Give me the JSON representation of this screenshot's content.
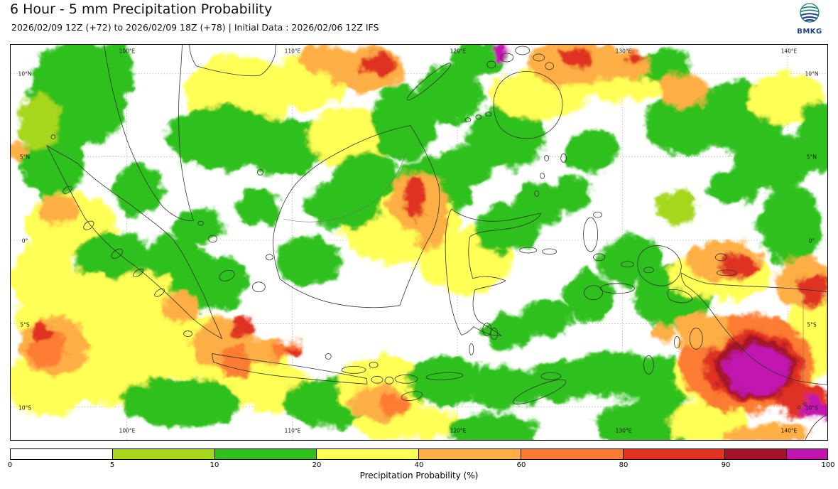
{
  "header": {
    "title": "6 Hour - 5 mm Precipitation Probability",
    "subtitle": "2026/02/09 12Z (+72) to 2026/02/09 18Z (+78) | Initial Data : 2026/02/06 12Z IFS"
  },
  "logo": {
    "label": "BMKG",
    "navy": "#1b3f8f",
    "teal": "#0e7f72"
  },
  "map": {
    "lon_labels": [
      "100°E",
      "110°E",
      "120°E",
      "130°E",
      "140°E"
    ],
    "lat_labels": [
      "10°N",
      "5°N",
      "0°",
      "5°S",
      "10°S"
    ],
    "palette": {
      "l": "#a6d71c",
      "g": "#2fc01e",
      "y": "#ffff55",
      "o": "#fdae44",
      "O": "#fb7b32",
      "r": "#e03122",
      "R": "#a41428",
      "m": "#c215b0"
    },
    "blobs": [
      [
        95,
        70,
        70,
        75,
        "g"
      ],
      [
        152,
        35,
        22,
        45,
        "g"
      ],
      [
        60,
        165,
        45,
        55,
        "g"
      ],
      [
        40,
        110,
        30,
        40,
        "l"
      ],
      [
        320,
        70,
        75,
        55,
        "y"
      ],
      [
        300,
        130,
        80,
        45,
        "g"
      ],
      [
        420,
        50,
        55,
        40,
        "y"
      ],
      [
        385,
        145,
        65,
        40,
        "g"
      ],
      [
        480,
        130,
        60,
        45,
        "y"
      ],
      [
        555,
        110,
        45,
        55,
        "g"
      ],
      [
        620,
        70,
        45,
        40,
        "g"
      ],
      [
        660,
        20,
        40,
        25,
        "g"
      ],
      [
        700,
        130,
        55,
        45,
        "g"
      ],
      [
        745,
        70,
        70,
        35,
        "y"
      ],
      [
        855,
        45,
        75,
        35,
        "y"
      ],
      [
        920,
        30,
        40,
        25,
        "g"
      ],
      [
        950,
        110,
        55,
        45,
        "g"
      ],
      [
        1030,
        100,
        65,
        50,
        "g"
      ],
      [
        1095,
        75,
        55,
        35,
        "y"
      ],
      [
        1075,
        165,
        55,
        40,
        "g"
      ],
      [
        1140,
        130,
        30,
        50,
        "g"
      ],
      [
        595,
        205,
        55,
        45,
        "g"
      ],
      [
        550,
        255,
        85,
        55,
        "y"
      ],
      [
        470,
        225,
        55,
        35,
        "g"
      ],
      [
        640,
        305,
        65,
        45,
        "y"
      ],
      [
        700,
        260,
        45,
        35,
        "g"
      ],
      [
        745,
        225,
        35,
        30,
        "g"
      ],
      [
        85,
        255,
        65,
        45,
        "y"
      ],
      [
        45,
        330,
        45,
        55,
        "y"
      ],
      [
        145,
        305,
        55,
        40,
        "g"
      ],
      [
        95,
        385,
        85,
        65,
        "y"
      ],
      [
        200,
        365,
        65,
        45,
        "y"
      ],
      [
        280,
        335,
        55,
        40,
        "g"
      ],
      [
        230,
        300,
        40,
        30,
        "g"
      ],
      [
        55,
        475,
        60,
        50,
        "y"
      ],
      [
        155,
        455,
        75,
        55,
        "y"
      ],
      [
        255,
        425,
        65,
        45,
        "y"
      ],
      [
        330,
        465,
        65,
        45,
        "y"
      ],
      [
        240,
        505,
        85,
        35,
        "g"
      ],
      [
        375,
        485,
        55,
        35,
        "y"
      ],
      [
        450,
        505,
        65,
        35,
        "g"
      ],
      [
        525,
        485,
        65,
        45,
        "y"
      ],
      [
        615,
        475,
        55,
        35,
        "g"
      ],
      [
        695,
        485,
        55,
        30,
        "g"
      ],
      [
        775,
        475,
        45,
        30,
        "g"
      ],
      [
        850,
        465,
        55,
        35,
        "g"
      ],
      [
        920,
        475,
        55,
        35,
        "g"
      ],
      [
        1000,
        465,
        65,
        45,
        "y"
      ],
      [
        560,
        535,
        75,
        25,
        "y"
      ],
      [
        680,
        545,
        65,
        25,
        "g"
      ],
      [
        900,
        535,
        75,
        35,
        "g"
      ],
      [
        985,
        535,
        55,
        35,
        "y"
      ],
      [
        935,
        355,
        55,
        45,
        "g"
      ],
      [
        1000,
        325,
        75,
        35,
        "y"
      ],
      [
        875,
        305,
        45,
        35,
        "g"
      ],
      [
        815,
        355,
        35,
        35,
        "g"
      ],
      [
        755,
        385,
        35,
        25,
        "g"
      ],
      [
        700,
        405,
        35,
        25,
        "g"
      ],
      [
        1100,
        255,
        45,
        55,
        "g"
      ],
      [
        1130,
        405,
        35,
        70,
        "y"
      ],
      [
        420,
        305,
        45,
        35,
        "g"
      ],
      [
        500,
        185,
        45,
        35,
        "g"
      ],
      [
        180,
        205,
        35,
        35,
        "g"
      ],
      [
        265,
        255,
        35,
        25,
        "g"
      ],
      [
        350,
        230,
        30,
        25,
        "g"
      ],
      [
        640,
        170,
        40,
        30,
        "g"
      ],
      [
        820,
        150,
        35,
        30,
        "g"
      ],
      [
        790,
        210,
        30,
        25,
        "g"
      ],
      [
        940,
        230,
        30,
        25,
        "l"
      ],
      [
        1020,
        200,
        35,
        25,
        "g"
      ],
      [
        500,
        35,
        55,
        32,
        "o"
      ],
      [
        518,
        28,
        25,
        16,
        "r"
      ],
      [
        795,
        25,
        65,
        32,
        "o"
      ],
      [
        798,
        18,
        22,
        13,
        "r"
      ],
      [
        868,
        28,
        35,
        22,
        "o"
      ],
      [
        882,
        20,
        14,
        10,
        "r"
      ],
      [
        692,
        10,
        11,
        11,
        "m"
      ],
      [
        950,
        65,
        35,
        25,
        "o"
      ],
      [
        440,
        18,
        35,
        20,
        "o"
      ],
      [
        575,
        222,
        42,
        42,
        "o"
      ],
      [
        571,
        215,
        15,
        32,
        "r"
      ],
      [
        592,
        262,
        22,
        26,
        "o"
      ],
      [
        62,
        425,
        48,
        42,
        "o"
      ],
      [
        52,
        432,
        26,
        24,
        "O"
      ],
      [
        42,
        405,
        15,
        13,
        "r"
      ],
      [
        298,
        422,
        42,
        36,
        "o"
      ],
      [
        318,
        448,
        24,
        20,
        "O"
      ],
      [
        330,
        400,
        16,
        13,
        "r"
      ],
      [
        358,
        432,
        30,
        18,
        "o"
      ],
      [
        388,
        430,
        22,
        12,
        "O"
      ],
      [
        398,
        432,
        10,
        7,
        "r"
      ],
      [
        520,
        505,
        42,
        26,
        "o"
      ],
      [
        542,
        508,
        20,
        14,
        "O"
      ],
      [
        68,
        235,
        28,
        22,
        "o"
      ],
      [
        10,
        150,
        14,
        10,
        "o"
      ],
      [
        240,
        372,
        28,
        22,
        "o"
      ],
      [
        1008,
        305,
        55,
        28,
        "o"
      ],
      [
        1028,
        312,
        28,
        16,
        "r"
      ],
      [
        1118,
        335,
        38,
        38,
        "o"
      ],
      [
        1132,
        345,
        20,
        22,
        "r"
      ],
      [
        1040,
        450,
        95,
        70,
        "O"
      ],
      [
        1048,
        455,
        70,
        52,
        "r"
      ],
      [
        1050,
        457,
        58,
        44,
        "R"
      ],
      [
        1052,
        460,
        46,
        34,
        "m"
      ],
      [
        1118,
        502,
        40,
        24,
        "r"
      ],
      [
        1136,
        512,
        24,
        14,
        "m"
      ],
      [
        1085,
        548,
        40,
        16,
        "o"
      ],
      [
        1035,
        552,
        25,
        12,
        "o"
      ],
      [
        975,
        405,
        38,
        26,
        "o"
      ],
      [
        918,
        408,
        16,
        11,
        "o"
      ]
    ]
  },
  "colorbar": {
    "label": "Precipitation Probability (%)",
    "ticks": [
      "0",
      "5",
      "10",
      "20",
      "40",
      "60",
      "80",
      "90",
      "100"
    ],
    "segments": [
      {
        "color": "#ffffff",
        "w": 1
      },
      {
        "color": "#a6d71c",
        "w": 1
      },
      {
        "color": "#2fc01e",
        "w": 1
      },
      {
        "color": "#ffff55",
        "w": 1
      },
      {
        "color": "#fdae44",
        "w": 1
      },
      {
        "color": "#fb7b32",
        "w": 1
      },
      {
        "color": "#e03122",
        "w": 1
      },
      {
        "color": "#a41428",
        "w": 0.6
      },
      {
        "color": "#c215b0",
        "w": 0.4
      }
    ]
  }
}
